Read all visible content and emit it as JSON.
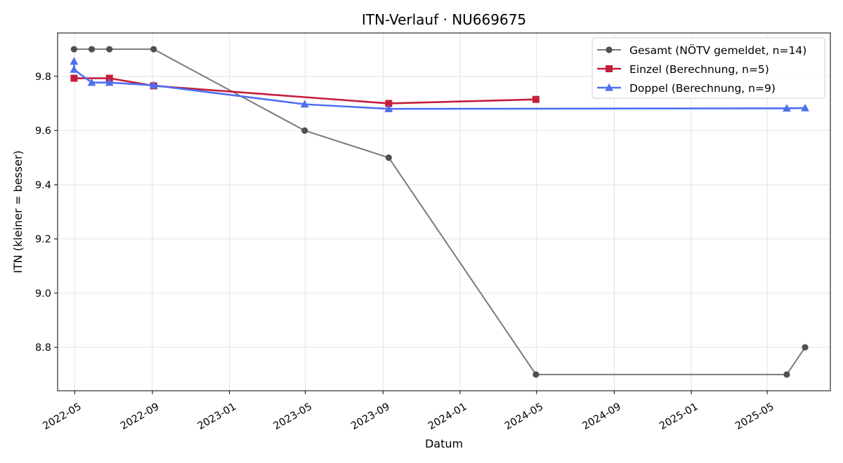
{
  "chart_data": {
    "type": "line",
    "title": "ITN-Verlauf · NU669675",
    "xlabel": "Datum",
    "ylabel": "ITN  (kleiner = besser)",
    "xlim": [
      "2022-04-04",
      "2025-08-09"
    ],
    "ylim": [
      8.64,
      9.96
    ],
    "x_ticks": [
      "2022-05-01",
      "2022-09-01",
      "2023-01-01",
      "2023-05-01",
      "2023-09-01",
      "2024-01-01",
      "2024-05-01",
      "2024-09-01",
      "2025-01-01",
      "2025-05-01"
    ],
    "x_tick_labels": [
      "2022-05",
      "2022-09",
      "2023-01",
      "2023-05",
      "2023-09",
      "2024-01",
      "2024-05",
      "2024-09",
      "2025-01",
      "2025-05"
    ],
    "y_ticks": [
      8.8,
      9.0,
      9.2,
      9.4,
      9.6,
      9.8
    ],
    "y_tick_labels": [
      "8.8",
      "9.0",
      "9.2",
      "9.4",
      "9.6",
      "9.8"
    ],
    "grid": true,
    "legend_position": "top-right",
    "series": [
      {
        "name": "Gesamt (NÖTV gemeldet, n=14)",
        "color": "#7a7a7a",
        "marker_color": "#505050",
        "marker": "circle",
        "points": [
          {
            "x": "2022-04-30",
            "y": 9.9
          },
          {
            "x": "2022-05-28",
            "y": 9.9
          },
          {
            "x": "2022-06-25",
            "y": 9.9
          },
          {
            "x": "2022-09-03",
            "y": 9.9
          },
          {
            "x": "2023-04-30",
            "y": 9.6
          },
          {
            "x": "2023-09-10",
            "y": 9.5
          },
          {
            "x": "2024-04-30",
            "y": 8.7
          },
          {
            "x": "2025-06-01",
            "y": 8.7
          },
          {
            "x": "2025-06-30",
            "y": 8.8
          }
        ]
      },
      {
        "name": "Einzel (Berechnung, n=5)",
        "color": "#c41e3a",
        "marker": "square",
        "points": [
          {
            "x": "2022-04-30",
            "y": 9.793
          },
          {
            "x": "2022-06-25",
            "y": 9.793
          },
          {
            "x": "2022-09-03",
            "y": 9.765
          },
          {
            "x": "2023-09-10",
            "y": 9.7
          },
          {
            "x": "2024-04-30",
            "y": 9.715
          }
        ]
      },
      {
        "name": "Doppel (Berechnung, n=9)",
        "color": "#4d6ff0",
        "marker": "triangle",
        "points": [
          {
            "x": "2022-04-30",
            "y": 9.855
          },
          {
            "x": "2022-04-30",
            "y": 9.825
          },
          {
            "x": "2022-05-28",
            "y": 9.777
          },
          {
            "x": "2022-06-25",
            "y": 9.777
          },
          {
            "x": "2022-09-03",
            "y": 9.767
          },
          {
            "x": "2023-04-30",
            "y": 9.697
          },
          {
            "x": "2023-09-10",
            "y": 9.68
          },
          {
            "x": "2025-06-01",
            "y": 9.682
          },
          {
            "x": "2025-06-30",
            "y": 9.683
          }
        ]
      }
    ]
  }
}
